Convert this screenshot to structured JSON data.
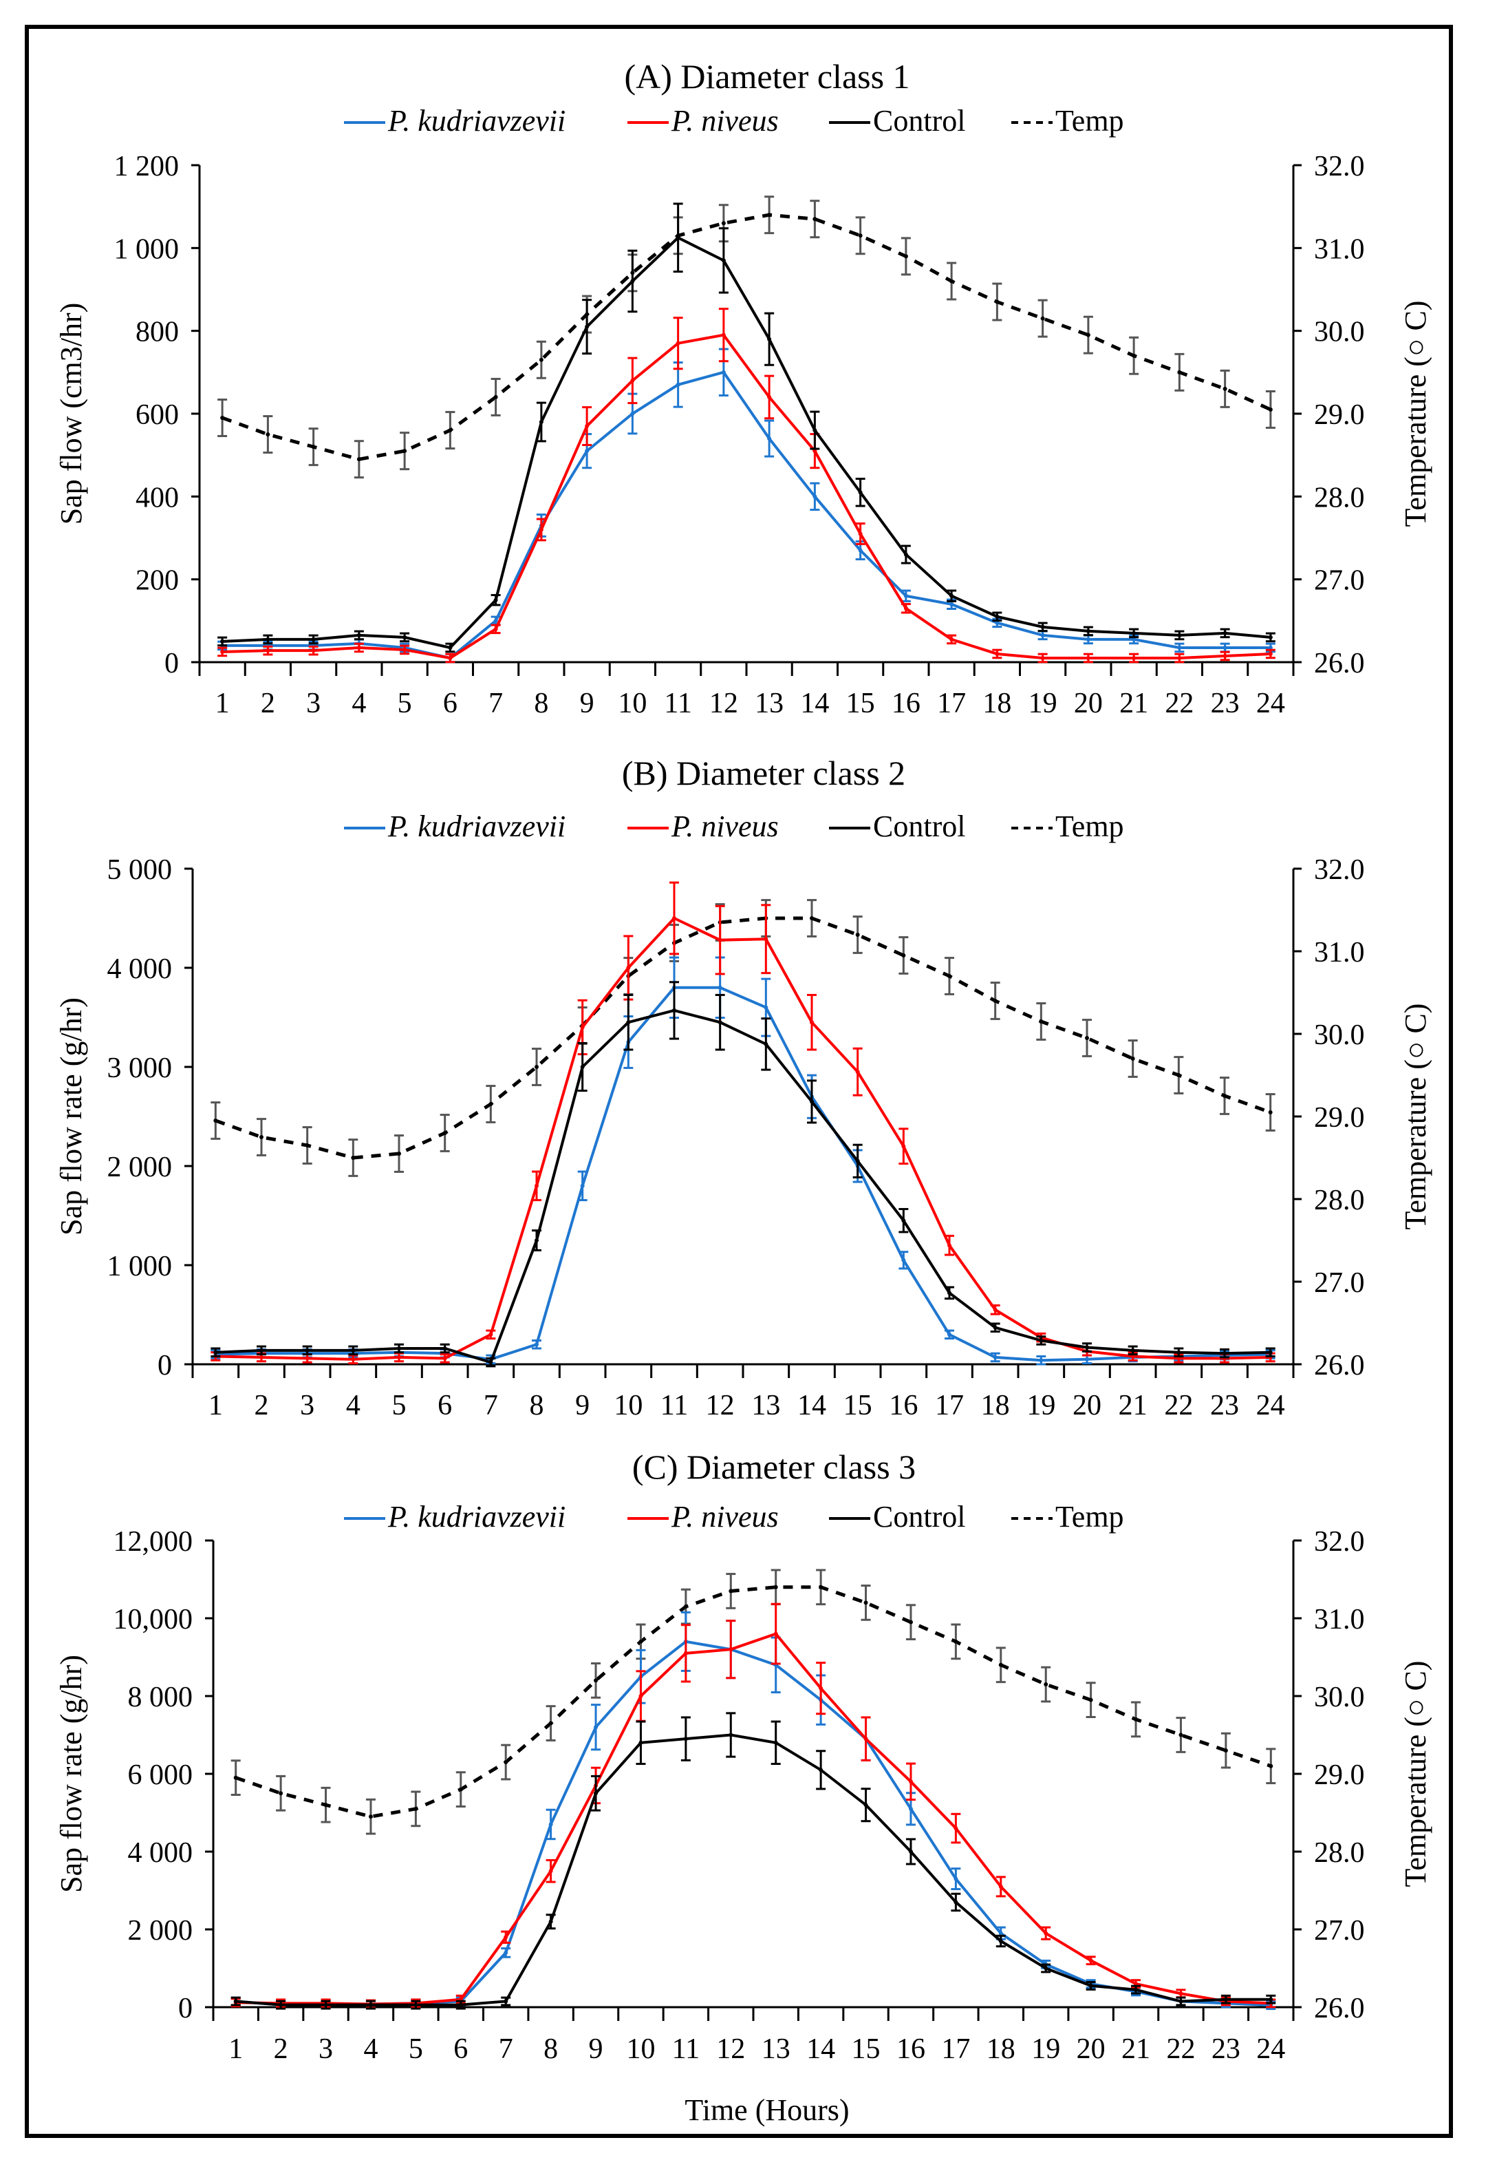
{
  "chart_data": [
    {
      "type": "line",
      "title": "(A) Diameter class 1",
      "xlabel": "",
      "ylabel": "Sap flow (cm3/hr)",
      "y2label": "Temperature (○ C)",
      "x": [
        1,
        2,
        3,
        4,
        5,
        6,
        7,
        8,
        9,
        10,
        11,
        12,
        13,
        14,
        15,
        16,
        17,
        18,
        19,
        20,
        21,
        22,
        23,
        24
      ],
      "ylim": [
        0,
        1200
      ],
      "yticks": [
        0,
        200,
        400,
        600,
        800,
        1000,
        1200
      ],
      "ytick_labels": [
        "0",
        "200",
        "400",
        "600",
        "800",
        "1 000",
        "1 200"
      ],
      "y2lim": [
        26,
        32
      ],
      "y2ticks": [
        26,
        27,
        28,
        29,
        30,
        31,
        32
      ],
      "y2tick_labels": [
        "26.0",
        "27.0",
        "28.0",
        "29.0",
        "30.0",
        "31.0",
        "32.0"
      ],
      "legend_position": "top",
      "series": [
        {
          "name": "P. kudriavzevii",
          "color": "#1f77d0",
          "axis": "left",
          "dash": false,
          "italic": true,
          "values": [
            40,
            40,
            40,
            45,
            35,
            10,
            100,
            330,
            510,
            600,
            670,
            700,
            540,
            400,
            270,
            160,
            140,
            95,
            65,
            55,
            55,
            35,
            35,
            35
          ]
        },
        {
          "name": "P. niveus",
          "color": "#ff0000",
          "axis": "left",
          "dash": false,
          "italic": true,
          "values": [
            25,
            28,
            28,
            35,
            30,
            10,
            80,
            320,
            570,
            680,
            770,
            790,
            640,
            510,
            310,
            130,
            55,
            20,
            10,
            10,
            10,
            10,
            15,
            20
          ]
        },
        {
          "name": "Control",
          "color": "#000000",
          "axis": "left",
          "dash": false,
          "italic": false,
          "values": [
            50,
            55,
            55,
            65,
            60,
            35,
            150,
            580,
            810,
            920,
            1025,
            970,
            780,
            560,
            410,
            260,
            160,
            110,
            85,
            75,
            70,
            65,
            70,
            60
          ]
        },
        {
          "name": "Temp",
          "color": "#000000",
          "axis": "right",
          "dash": true,
          "italic": false,
          "values": [
            28.95,
            28.75,
            28.6,
            28.45,
            28.55,
            28.8,
            29.2,
            29.65,
            30.2,
            30.7,
            31.15,
            31.3,
            31.4,
            31.35,
            31.15,
            30.9,
            30.6,
            30.35,
            30.15,
            29.95,
            29.7,
            29.5,
            29.3,
            29.05
          ]
        }
      ]
    },
    {
      "type": "line",
      "title": "(B) Diameter class 2",
      "xlabel": "",
      "ylabel": "Sap flow rate (g/hr)",
      "y2label": "Temperature (○ C)",
      "x": [
        1,
        2,
        3,
        4,
        5,
        6,
        7,
        8,
        9,
        10,
        11,
        12,
        13,
        14,
        15,
        16,
        17,
        18,
        19,
        20,
        21,
        22,
        23,
        24
      ],
      "ylim": [
        0,
        5000
      ],
      "yticks": [
        0,
        1000,
        2000,
        3000,
        4000,
        5000
      ],
      "ytick_labels": [
        "0",
        "1 000",
        "2 000",
        "3 000",
        "4 000",
        "5 000"
      ],
      "y2lim": [
        26,
        32
      ],
      "y2ticks": [
        26,
        27,
        28,
        29,
        30,
        31,
        32
      ],
      "y2tick_labels": [
        "26.0",
        "27.0",
        "28.0",
        "29.0",
        "30.0",
        "31.0",
        "32.0"
      ],
      "legend_position": "top",
      "series": [
        {
          "name": "P. kudriavzevii",
          "color": "#1f77d0",
          "axis": "left",
          "dash": false,
          "italic": true,
          "values": [
            100,
            110,
            110,
            110,
            120,
            110,
            50,
            200,
            1800,
            3250,
            3800,
            3800,
            3600,
            2700,
            2000,
            1050,
            300,
            70,
            40,
            50,
            70,
            80,
            90,
            100
          ]
        },
        {
          "name": "P. niveus",
          "color": "#ff0000",
          "axis": "left",
          "dash": false,
          "italic": true,
          "values": [
            80,
            70,
            60,
            50,
            70,
            60,
            300,
            1800,
            3400,
            4000,
            4500,
            4280,
            4290,
            3450,
            2950,
            2200,
            1200,
            550,
            270,
            130,
            80,
            60,
            60,
            70
          ]
        },
        {
          "name": "Control",
          "color": "#000000",
          "axis": "left",
          "dash": false,
          "italic": false,
          "values": [
            120,
            140,
            140,
            140,
            160,
            160,
            20,
            1250,
            3000,
            3450,
            3570,
            3450,
            3230,
            2650,
            2050,
            1450,
            720,
            370,
            240,
            170,
            140,
            120,
            110,
            120
          ]
        },
        {
          "name": "Temp",
          "color": "#000000",
          "axis": "right",
          "dash": true,
          "italic": false,
          "values": [
            28.95,
            28.75,
            28.65,
            28.5,
            28.55,
            28.8,
            29.15,
            29.6,
            30.1,
            30.7,
            31.1,
            31.35,
            31.4,
            31.4,
            31.2,
            30.95,
            30.7,
            30.4,
            30.15,
            29.95,
            29.7,
            29.5,
            29.25,
            29.05
          ]
        }
      ]
    },
    {
      "type": "line",
      "title": "(C) Diameter class 3",
      "xlabel": "Time (Hours)",
      "ylabel": "Sap flow rate (g/hr)",
      "y2label": "Temperature (○ C)",
      "x": [
        1,
        2,
        3,
        4,
        5,
        6,
        7,
        8,
        9,
        10,
        11,
        12,
        13,
        14,
        15,
        16,
        17,
        18,
        19,
        20,
        21,
        22,
        23,
        24
      ],
      "ylim": [
        0,
        12000
      ],
      "yticks": [
        0,
        2000,
        4000,
        6000,
        8000,
        10000,
        12000
      ],
      "ytick_labels": [
        "0",
        "2 000",
        "4 000",
        "6 000",
        "8 000",
        "10,000",
        "12,000"
      ],
      "y2lim": [
        26,
        32
      ],
      "y2ticks": [
        26,
        27,
        28,
        29,
        30,
        31,
        32
      ],
      "y2tick_labels": [
        "26.0",
        "27.0",
        "28.0",
        "29.0",
        "30.0",
        "31.0",
        "32.0"
      ],
      "legend_position": "top",
      "series": [
        {
          "name": "P. kudriavzevii",
          "color": "#1f77d0",
          "axis": "left",
          "dash": false,
          "italic": true,
          "values": [
            150,
            60,
            80,
            80,
            100,
            150,
            1400,
            4700,
            7200,
            8500,
            9400,
            9200,
            8800,
            7900,
            6900,
            5100,
            3300,
            1900,
            1100,
            600,
            400,
            150,
            100,
            50
          ]
        },
        {
          "name": "P. niveus",
          "color": "#ff0000",
          "axis": "left",
          "dash": false,
          "italic": true,
          "values": [
            120,
            100,
            100,
            80,
            100,
            200,
            1800,
            3500,
            5700,
            8000,
            9100,
            9200,
            9600,
            8200,
            6900,
            5800,
            4600,
            3100,
            1900,
            1200,
            600,
            350,
            150,
            100
          ]
        },
        {
          "name": "Control",
          "color": "#000000",
          "axis": "left",
          "dash": false,
          "italic": false,
          "values": [
            150,
            60,
            60,
            60,
            60,
            60,
            150,
            2200,
            5500,
            6800,
            6900,
            7000,
            6800,
            6100,
            5200,
            4000,
            2700,
            1700,
            1000,
            550,
            450,
            150,
            200,
            200
          ]
        },
        {
          "name": "Temp",
          "color": "#000000",
          "axis": "right",
          "dash": true,
          "italic": false,
          "values": [
            28.95,
            28.75,
            28.6,
            28.45,
            28.55,
            28.8,
            29.15,
            29.65,
            30.2,
            30.7,
            31.15,
            31.35,
            31.4,
            31.4,
            31.2,
            30.95,
            30.7,
            30.4,
            30.15,
            29.95,
            29.7,
            29.5,
            29.3,
            29.1
          ]
        }
      ]
    }
  ]
}
